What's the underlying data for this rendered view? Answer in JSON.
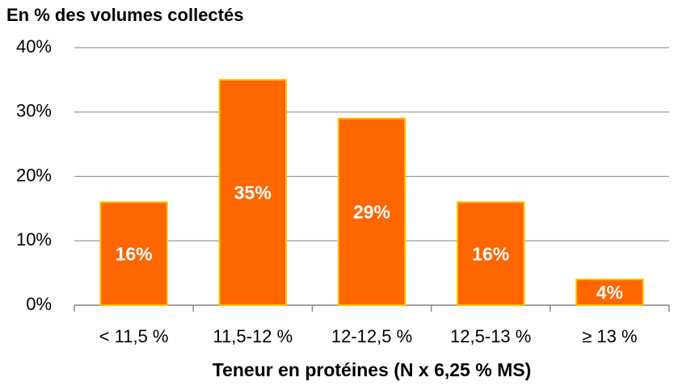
{
  "chart_data": {
    "type": "bar",
    "title": "En % des volumes collectés",
    "x_label": "Teneur en protéines (N x 6,25 % MS)",
    "categories": [
      "< 11,5 %",
      "11,5-12 %",
      "12-12,5 %",
      "12,5-13 %",
      "≥ 13 %"
    ],
    "values": [
      16,
      35,
      29,
      16,
      4
    ],
    "value_labels": [
      "16%",
      "35%",
      "29%",
      "16%",
      "4%"
    ],
    "color": "#ff6600",
    "edge_color": "#ffc000",
    "ylim": [
      0,
      40
    ],
    "yticks": [
      {
        "value": 0,
        "label": "0%"
      },
      {
        "value": 10,
        "label": "10%"
      },
      {
        "value": 20,
        "label": "20%"
      },
      {
        "value": 30,
        "label": "30%"
      },
      {
        "value": 40,
        "label": "40%"
      }
    ],
    "grid": true
  }
}
